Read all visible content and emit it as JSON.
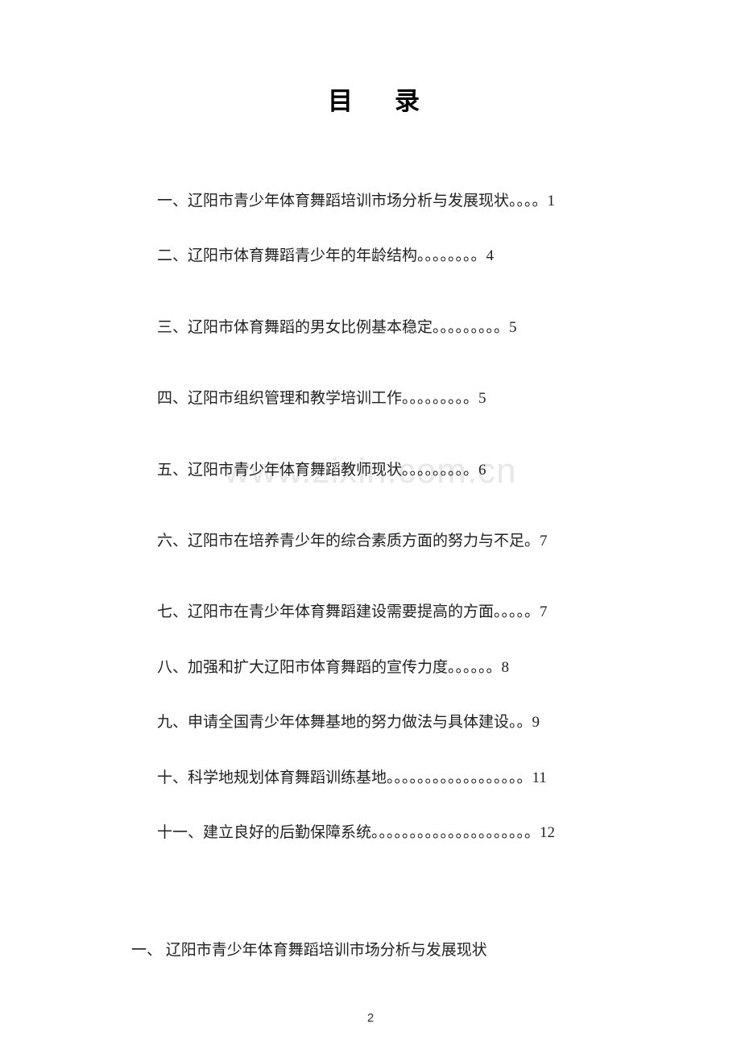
{
  "title": "目录",
  "watermark": "www.zixin.com.cn",
  "toc": {
    "items": [
      {
        "text": "一、辽阳市青少年体育舞蹈培训市场分析与发展现状。。。。1"
      },
      {
        "text": "二、辽阳市体育舞蹈青少年的年龄结构。。。。。。。。4"
      },
      {
        "text": "三、辽阳市体育舞蹈的男女比例基本稳定。。。。。。。。。5"
      },
      {
        "text": "四、辽阳市组织管理和教学培训工作。。。。。。。。。5"
      },
      {
        "text": "五、辽阳市青少年体育舞蹈教师现状。。。。。。。。。6"
      },
      {
        "text": "六、辽阳市在培养青少年的综合素质方面的努力与不足。7"
      },
      {
        "text": "七、辽阳市在青少年体育舞蹈建设需要提高的方面。。。。。7"
      },
      {
        "text": "八、加强和扩大辽阳市体育舞蹈的宣传力度。。。。。。8"
      },
      {
        "text": "九、申请全国青少年体舞基地的努力做法与具体建设。。9"
      },
      {
        "text": "十、科学地规划体育舞蹈训练基地。。。。。。。。。。。。。。。。。。11"
      },
      {
        "text": "十一、建立良好的后勤保障系统。。。。。。。。。。。。。。。。。。。。。12"
      }
    ]
  },
  "section_heading": "一、 辽阳市青少年体育舞蹈培训市场分析与发展现状",
  "page_number": "2",
  "colors": {
    "background": "#ffffff",
    "text": "#222222",
    "watermark": "#e8e8e8",
    "page_num": "#333333"
  },
  "typography": {
    "title_fontsize": 31,
    "body_fontsize": 19,
    "watermark_fontsize": 44,
    "pagenum_fontsize": 15
  }
}
